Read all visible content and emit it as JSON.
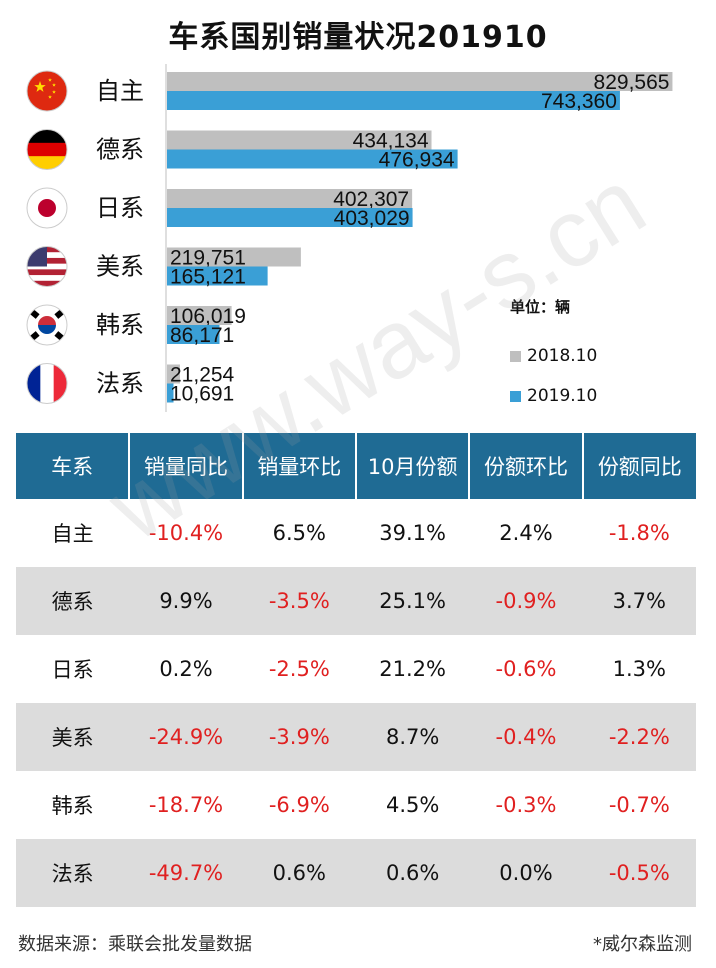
{
  "chart_data": {
    "type": "bar",
    "title": "车系国别销量状况201910",
    "categories": [
      "自主",
      "德系",
      "日系",
      "美系",
      "韩系",
      "法系"
    ],
    "series": [
      {
        "name": "2018.10",
        "color": "#bfbfbf",
        "values": [
          829565,
          434134,
          402307,
          219751,
          106019,
          21254
        ]
      },
      {
        "name": "2019.10",
        "color": "#3a9fd6",
        "values": [
          743360,
          476934,
          403029,
          165121,
          86171,
          10691
        ]
      }
    ],
    "value_labels": [
      [
        "829,565",
        "434,134",
        "402,307",
        "219,751",
        "106,019",
        "21,254"
      ],
      [
        "743,360",
        "476,934",
        "403,029",
        "165,121",
        "86,171",
        "10,691"
      ]
    ],
    "xlim": [
      0,
      860000
    ],
    "orientation": "horizontal",
    "unit_label": "单位：辆",
    "legend_position": "right"
  },
  "flags": [
    "china-flag-icon",
    "germany-flag-icon",
    "japan-flag-icon",
    "usa-flag-icon",
    "korea-flag-icon",
    "france-flag-icon"
  ],
  "table": {
    "headers": [
      "车系",
      "销量同比",
      "销量环比",
      "10月份额",
      "份额环比",
      "份额同比"
    ],
    "rows": [
      [
        "自主",
        "-10.4%",
        "6.5%",
        "39.1%",
        "2.4%",
        "-1.8%"
      ],
      [
        "德系",
        "9.9%",
        "-3.5%",
        "25.1%",
        "-0.9%",
        "3.7%"
      ],
      [
        "日系",
        "0.2%",
        "-2.5%",
        "21.2%",
        "-0.6%",
        "1.3%"
      ],
      [
        "美系",
        "-24.9%",
        "-3.9%",
        "8.7%",
        "-0.4%",
        "-2.2%"
      ],
      [
        "韩系",
        "-18.7%",
        "-6.9%",
        "4.5%",
        "-0.3%",
        "-0.7%"
      ],
      [
        "法系",
        "-49.7%",
        "0.6%",
        "0.6%",
        "0.0%",
        "-0.5%"
      ]
    ]
  },
  "footer": {
    "source": "数据来源：乘联会批发量数据",
    "note": "*威尔森监测"
  },
  "watermark": "www.way-s.cn",
  "colors": {
    "header_bg": "#1f6b94",
    "negative": "#e02020",
    "alt_row": "#dcdcdc"
  }
}
